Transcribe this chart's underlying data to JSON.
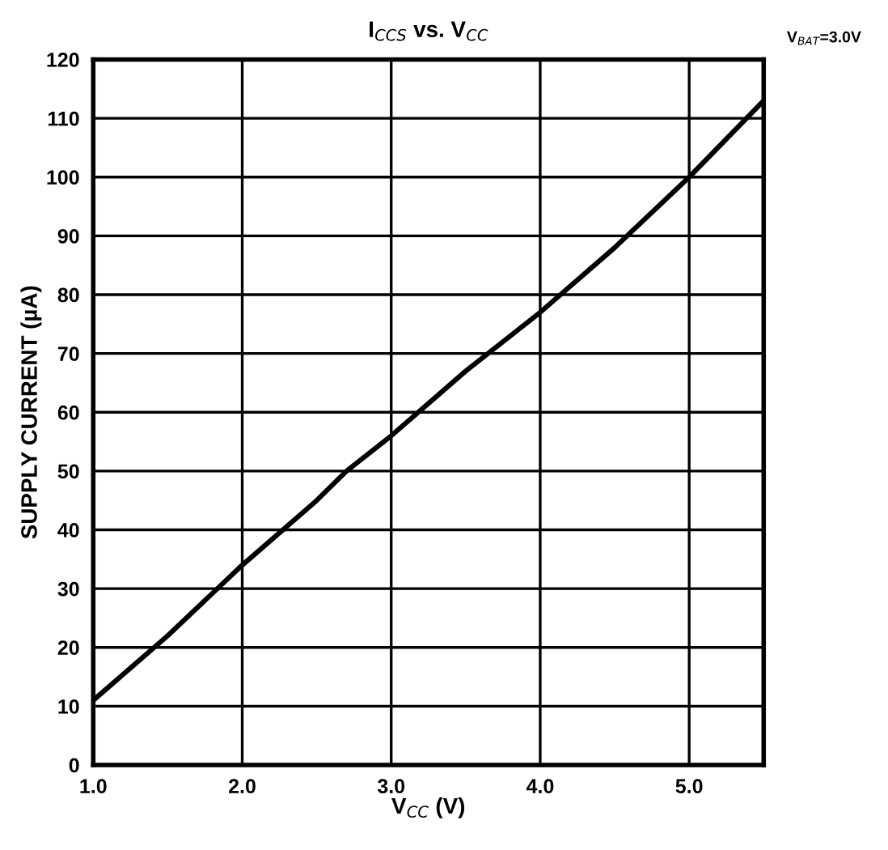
{
  "chart_data": {
    "type": "line",
    "title": "I$_{CCS}$ vs. V$_{CC}$",
    "xlabel": "V$_{CC}$ (V)",
    "ylabel": "SUPPLY CURRENT (µA)",
    "annotations": [
      "V$_{BAT}$=3.0V"
    ],
    "series": [
      {
        "color": "#000000",
        "x": [
          1.0,
          1.5,
          2.0,
          2.5,
          2.7,
          3.0,
          3.5,
          4.0,
          4.5,
          5.0,
          5.5
        ],
        "values": [
          11,
          22,
          34,
          45,
          50,
          56,
          67,
          77,
          88,
          100,
          113
        ]
      }
    ],
    "xlim": [
      1.0,
      5.5
    ],
    "xticks": [
      {
        "value": 1.0,
        "label": "1.0"
      },
      {
        "value": 2.0,
        "label": "2.0"
      },
      {
        "value": 3.0,
        "label": "3.0"
      },
      {
        "value": 4.0,
        "label": "4.0"
      },
      {
        "value": 5.0,
        "label": "5.0"
      }
    ],
    "ylim": [
      0,
      120
    ],
    "yticks": [
      0,
      10,
      20,
      30,
      40,
      50,
      60,
      70,
      80,
      90,
      100,
      110,
      120
    ],
    "grid": true,
    "marker": "none",
    "line_style": "solid"
  }
}
